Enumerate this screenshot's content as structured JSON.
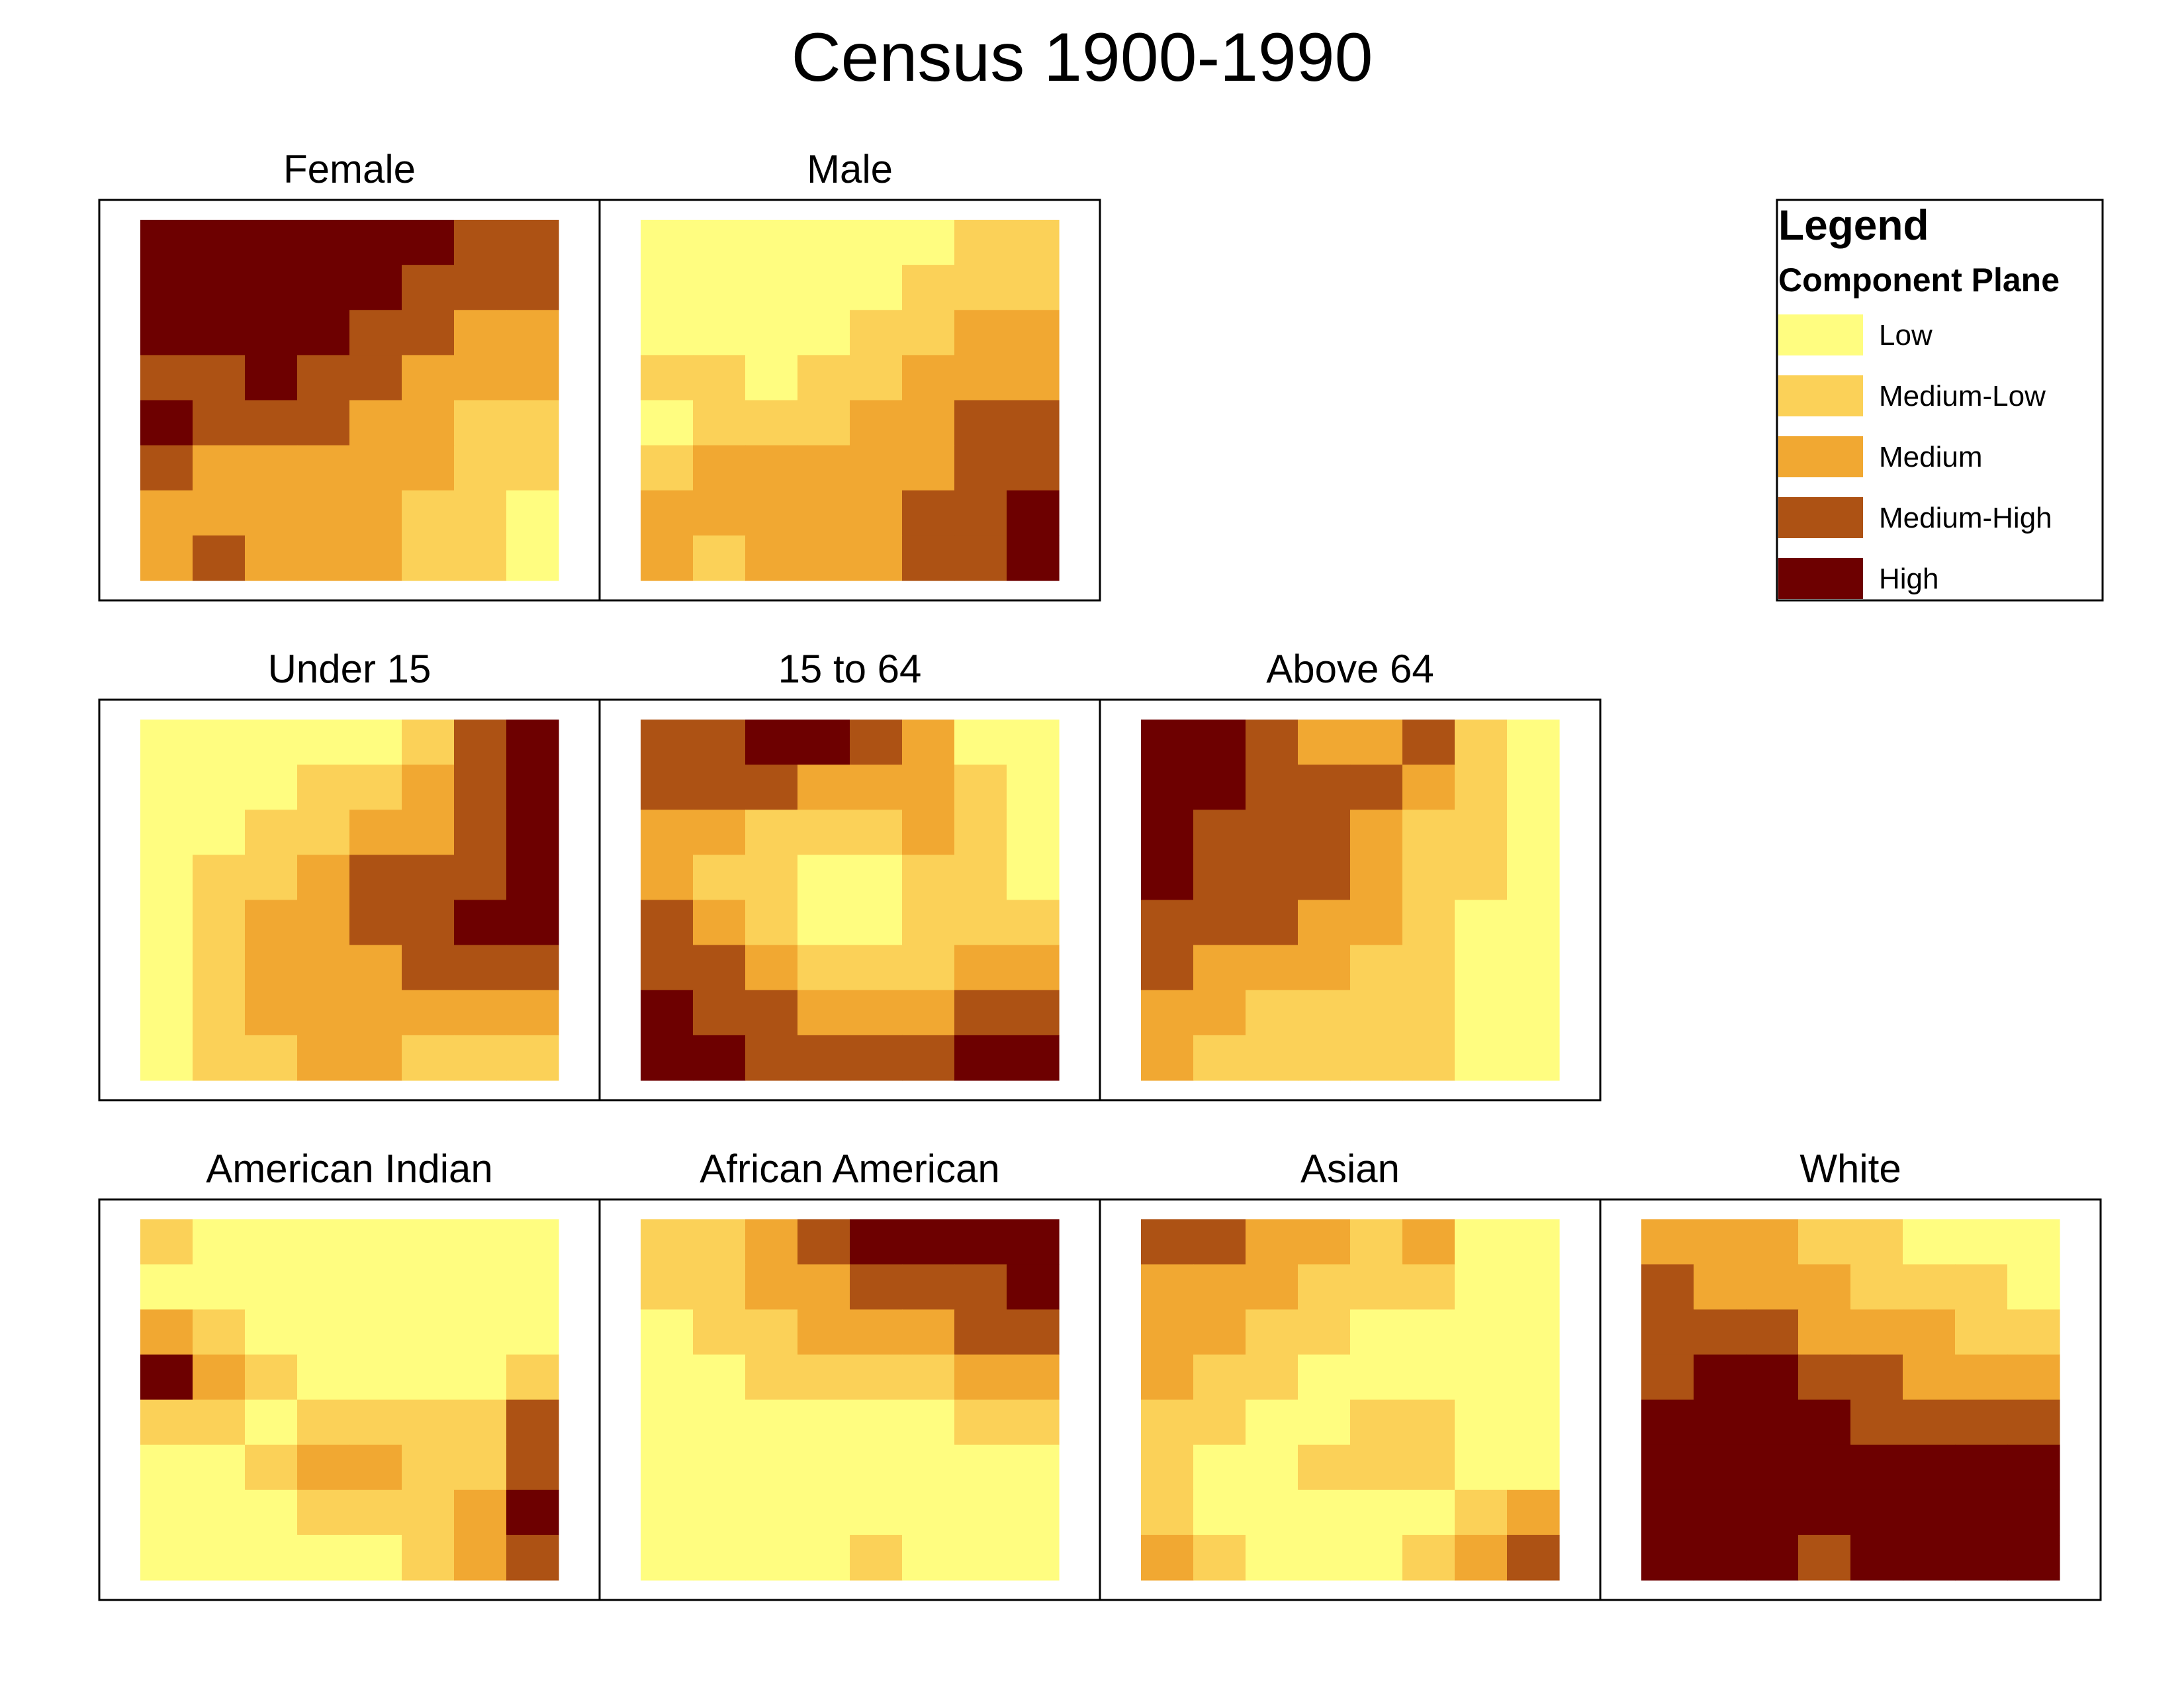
{
  "chart_data": {
    "type": "heatmap",
    "title": "Census 1900-1990",
    "grid": false,
    "legend": {
      "title": "Legend",
      "subtitle": "Component Plane",
      "placement": "top-right",
      "levels": [
        {
          "label": "Low",
          "color": "#FFFD80"
        },
        {
          "label": "Medium-Low",
          "color": "#FBD158"
        },
        {
          "label": "Medium",
          "color": "#F1A832"
        },
        {
          "label": "Medium-High",
          "color": "#AD5214"
        },
        {
          "label": "High",
          "color": "#6D0000"
        }
      ]
    },
    "panels": [
      {
        "title": "Female",
        "row": 0,
        "col": 0,
        "grid": [
          [
            4,
            4,
            4,
            4,
            4,
            4,
            3,
            3
          ],
          [
            4,
            4,
            4,
            4,
            4,
            3,
            3,
            3
          ],
          [
            4,
            4,
            4,
            4,
            3,
            3,
            2,
            2
          ],
          [
            3,
            3,
            4,
            3,
            3,
            2,
            2,
            2
          ],
          [
            4,
            3,
            3,
            3,
            2,
            2,
            1,
            1
          ],
          [
            3,
            2,
            2,
            2,
            2,
            2,
            1,
            1
          ],
          [
            2,
            2,
            2,
            2,
            2,
            1,
            1,
            0
          ],
          [
            2,
            3,
            2,
            2,
            2,
            1,
            1,
            0
          ]
        ]
      },
      {
        "title": "Male",
        "row": 0,
        "col": 1,
        "grid": [
          [
            0,
            0,
            0,
            0,
            0,
            0,
            1,
            1
          ],
          [
            0,
            0,
            0,
            0,
            0,
            1,
            1,
            1
          ],
          [
            0,
            0,
            0,
            0,
            1,
            1,
            2,
            2
          ],
          [
            1,
            1,
            0,
            1,
            1,
            2,
            2,
            2
          ],
          [
            0,
            1,
            1,
            1,
            2,
            2,
            3,
            3
          ],
          [
            1,
            2,
            2,
            2,
            2,
            2,
            3,
            3
          ],
          [
            2,
            2,
            2,
            2,
            2,
            3,
            3,
            4
          ],
          [
            2,
            1,
            2,
            2,
            2,
            3,
            3,
            4
          ]
        ]
      },
      {
        "title": "Under 15",
        "row": 1,
        "col": 0,
        "grid": [
          [
            0,
            0,
            0,
            0,
            0,
            1,
            3,
            4
          ],
          [
            0,
            0,
            0,
            1,
            1,
            2,
            3,
            4
          ],
          [
            0,
            0,
            1,
            1,
            2,
            2,
            3,
            4
          ],
          [
            0,
            1,
            1,
            2,
            3,
            3,
            3,
            4
          ],
          [
            0,
            1,
            2,
            2,
            3,
            3,
            4,
            4
          ],
          [
            0,
            1,
            2,
            2,
            2,
            3,
            3,
            3
          ],
          [
            0,
            1,
            2,
            2,
            2,
            2,
            2,
            2
          ],
          [
            0,
            1,
            1,
            2,
            2,
            1,
            1,
            1
          ]
        ]
      },
      {
        "title": "15 to 64",
        "row": 1,
        "col": 1,
        "grid": [
          [
            3,
            3,
            4,
            4,
            3,
            2,
            0,
            0
          ],
          [
            3,
            3,
            3,
            2,
            2,
            2,
            1,
            0
          ],
          [
            2,
            2,
            1,
            1,
            1,
            2,
            1,
            0
          ],
          [
            2,
            1,
            1,
            0,
            0,
            1,
            1,
            0
          ],
          [
            3,
            2,
            1,
            0,
            0,
            1,
            1,
            1
          ],
          [
            3,
            3,
            2,
            1,
            1,
            1,
            2,
            2
          ],
          [
            4,
            3,
            3,
            2,
            2,
            2,
            3,
            3
          ],
          [
            4,
            4,
            3,
            3,
            3,
            3,
            4,
            4
          ]
        ]
      },
      {
        "title": "Above 64",
        "row": 1,
        "col": 2,
        "grid": [
          [
            4,
            4,
            3,
            2,
            2,
            3,
            1,
            0
          ],
          [
            4,
            4,
            3,
            3,
            3,
            2,
            1,
            0
          ],
          [
            4,
            3,
            3,
            3,
            2,
            1,
            1,
            0
          ],
          [
            4,
            3,
            3,
            3,
            2,
            1,
            1,
            0
          ],
          [
            3,
            3,
            3,
            2,
            2,
            1,
            0,
            0
          ],
          [
            3,
            2,
            2,
            2,
            1,
            1,
            0,
            0
          ],
          [
            2,
            2,
            1,
            1,
            1,
            1,
            0,
            0
          ],
          [
            2,
            1,
            1,
            1,
            1,
            1,
            0,
            0
          ]
        ]
      },
      {
        "title": "American Indian",
        "row": 2,
        "col": 0,
        "grid": [
          [
            1,
            0,
            0,
            0,
            0,
            0,
            0,
            0
          ],
          [
            0,
            0,
            0,
            0,
            0,
            0,
            0,
            0
          ],
          [
            2,
            1,
            0,
            0,
            0,
            0,
            0,
            0
          ],
          [
            4,
            2,
            1,
            0,
            0,
            0,
            0,
            1
          ],
          [
            1,
            1,
            0,
            1,
            1,
            1,
            1,
            3
          ],
          [
            0,
            0,
            1,
            2,
            2,
            1,
            1,
            3
          ],
          [
            0,
            0,
            0,
            1,
            1,
            1,
            2,
            4
          ],
          [
            0,
            0,
            0,
            0,
            0,
            1,
            2,
            3
          ]
        ]
      },
      {
        "title": "African American",
        "row": 2,
        "col": 1,
        "grid": [
          [
            1,
            1,
            2,
            3,
            4,
            4,
            4,
            4
          ],
          [
            1,
            1,
            2,
            2,
            3,
            3,
            3,
            4
          ],
          [
            0,
            1,
            1,
            2,
            2,
            2,
            3,
            3
          ],
          [
            0,
            0,
            1,
            1,
            1,
            1,
            2,
            2
          ],
          [
            0,
            0,
            0,
            0,
            0,
            0,
            1,
            1
          ],
          [
            0,
            0,
            0,
            0,
            0,
            0,
            0,
            0
          ],
          [
            0,
            0,
            0,
            0,
            0,
            0,
            0,
            0
          ],
          [
            0,
            0,
            0,
            0,
            1,
            0,
            0,
            0
          ]
        ]
      },
      {
        "title": "Asian",
        "row": 2,
        "col": 2,
        "grid": [
          [
            3,
            3,
            2,
            2,
            1,
            2,
            0,
            0
          ],
          [
            2,
            2,
            2,
            1,
            1,
            1,
            0,
            0
          ],
          [
            2,
            2,
            1,
            1,
            0,
            0,
            0,
            0
          ],
          [
            2,
            1,
            1,
            0,
            0,
            0,
            0,
            0
          ],
          [
            1,
            1,
            0,
            0,
            1,
            1,
            0,
            0
          ],
          [
            1,
            0,
            0,
            1,
            1,
            1,
            0,
            0
          ],
          [
            1,
            0,
            0,
            0,
            0,
            0,
            1,
            2
          ],
          [
            2,
            1,
            0,
            0,
            0,
            1,
            2,
            3
          ]
        ]
      },
      {
        "title": "White",
        "row": 2,
        "col": 3,
        "grid": [
          [
            2,
            2,
            2,
            1,
            1,
            0,
            0,
            0
          ],
          [
            3,
            2,
            2,
            2,
            1,
            1,
            1,
            0
          ],
          [
            3,
            3,
            3,
            2,
            2,
            2,
            1,
            1
          ],
          [
            3,
            4,
            4,
            3,
            3,
            2,
            2,
            2
          ],
          [
            4,
            4,
            4,
            4,
            3,
            3,
            3,
            3
          ],
          [
            4,
            4,
            4,
            4,
            4,
            4,
            4,
            4
          ],
          [
            4,
            4,
            4,
            4,
            4,
            4,
            4,
            4
          ],
          [
            4,
            4,
            4,
            3,
            4,
            4,
            4,
            4
          ]
        ]
      }
    ]
  }
}
